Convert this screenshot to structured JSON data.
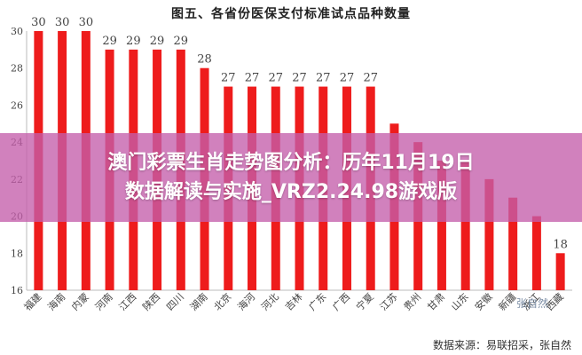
{
  "chart_data": {
    "type": "bar",
    "title": "图五、各省份医保支付标准试点品种数量",
    "categories": [
      "福建",
      "海南",
      "内蒙",
      "河南",
      "江西",
      "陕西",
      "四川",
      "湖南",
      "北京",
      "海河",
      "河北",
      "吉林",
      "广东",
      "广西",
      "宁夏",
      "江苏",
      "贵州",
      "甘肃",
      "山东",
      "安徽",
      "新疆",
      "浙江",
      "西藏"
    ],
    "values": [
      30,
      30,
      30,
      29,
      29,
      29,
      29,
      28,
      27,
      27,
      27,
      27,
      27,
      27,
      27,
      25,
      24,
      23,
      23,
      22,
      21,
      20,
      18
    ],
    "data_labels": [
      "30",
      "30",
      "30",
      "29",
      "29",
      "29",
      "29",
      "28",
      "27",
      "27",
      "27",
      "27",
      "27",
      "27",
      "27",
      "",
      "",
      "",
      "",
      "",
      "",
      "",
      "18"
    ],
    "ylim": [
      16,
      30
    ],
    "yticks": [
      16,
      18,
      20,
      22,
      24,
      26,
      28,
      30
    ],
    "grid": false,
    "legend": "none",
    "bar_color": "#ee1c1c",
    "source": "数据来源：易联招采，张自然"
  },
  "banner": {
    "line1": "澳门彩票生肖走势图分析：历年11月19日",
    "line2": "数据解读与实施_VRZ2.24.98游戏版"
  },
  "watermark": "张自然"
}
